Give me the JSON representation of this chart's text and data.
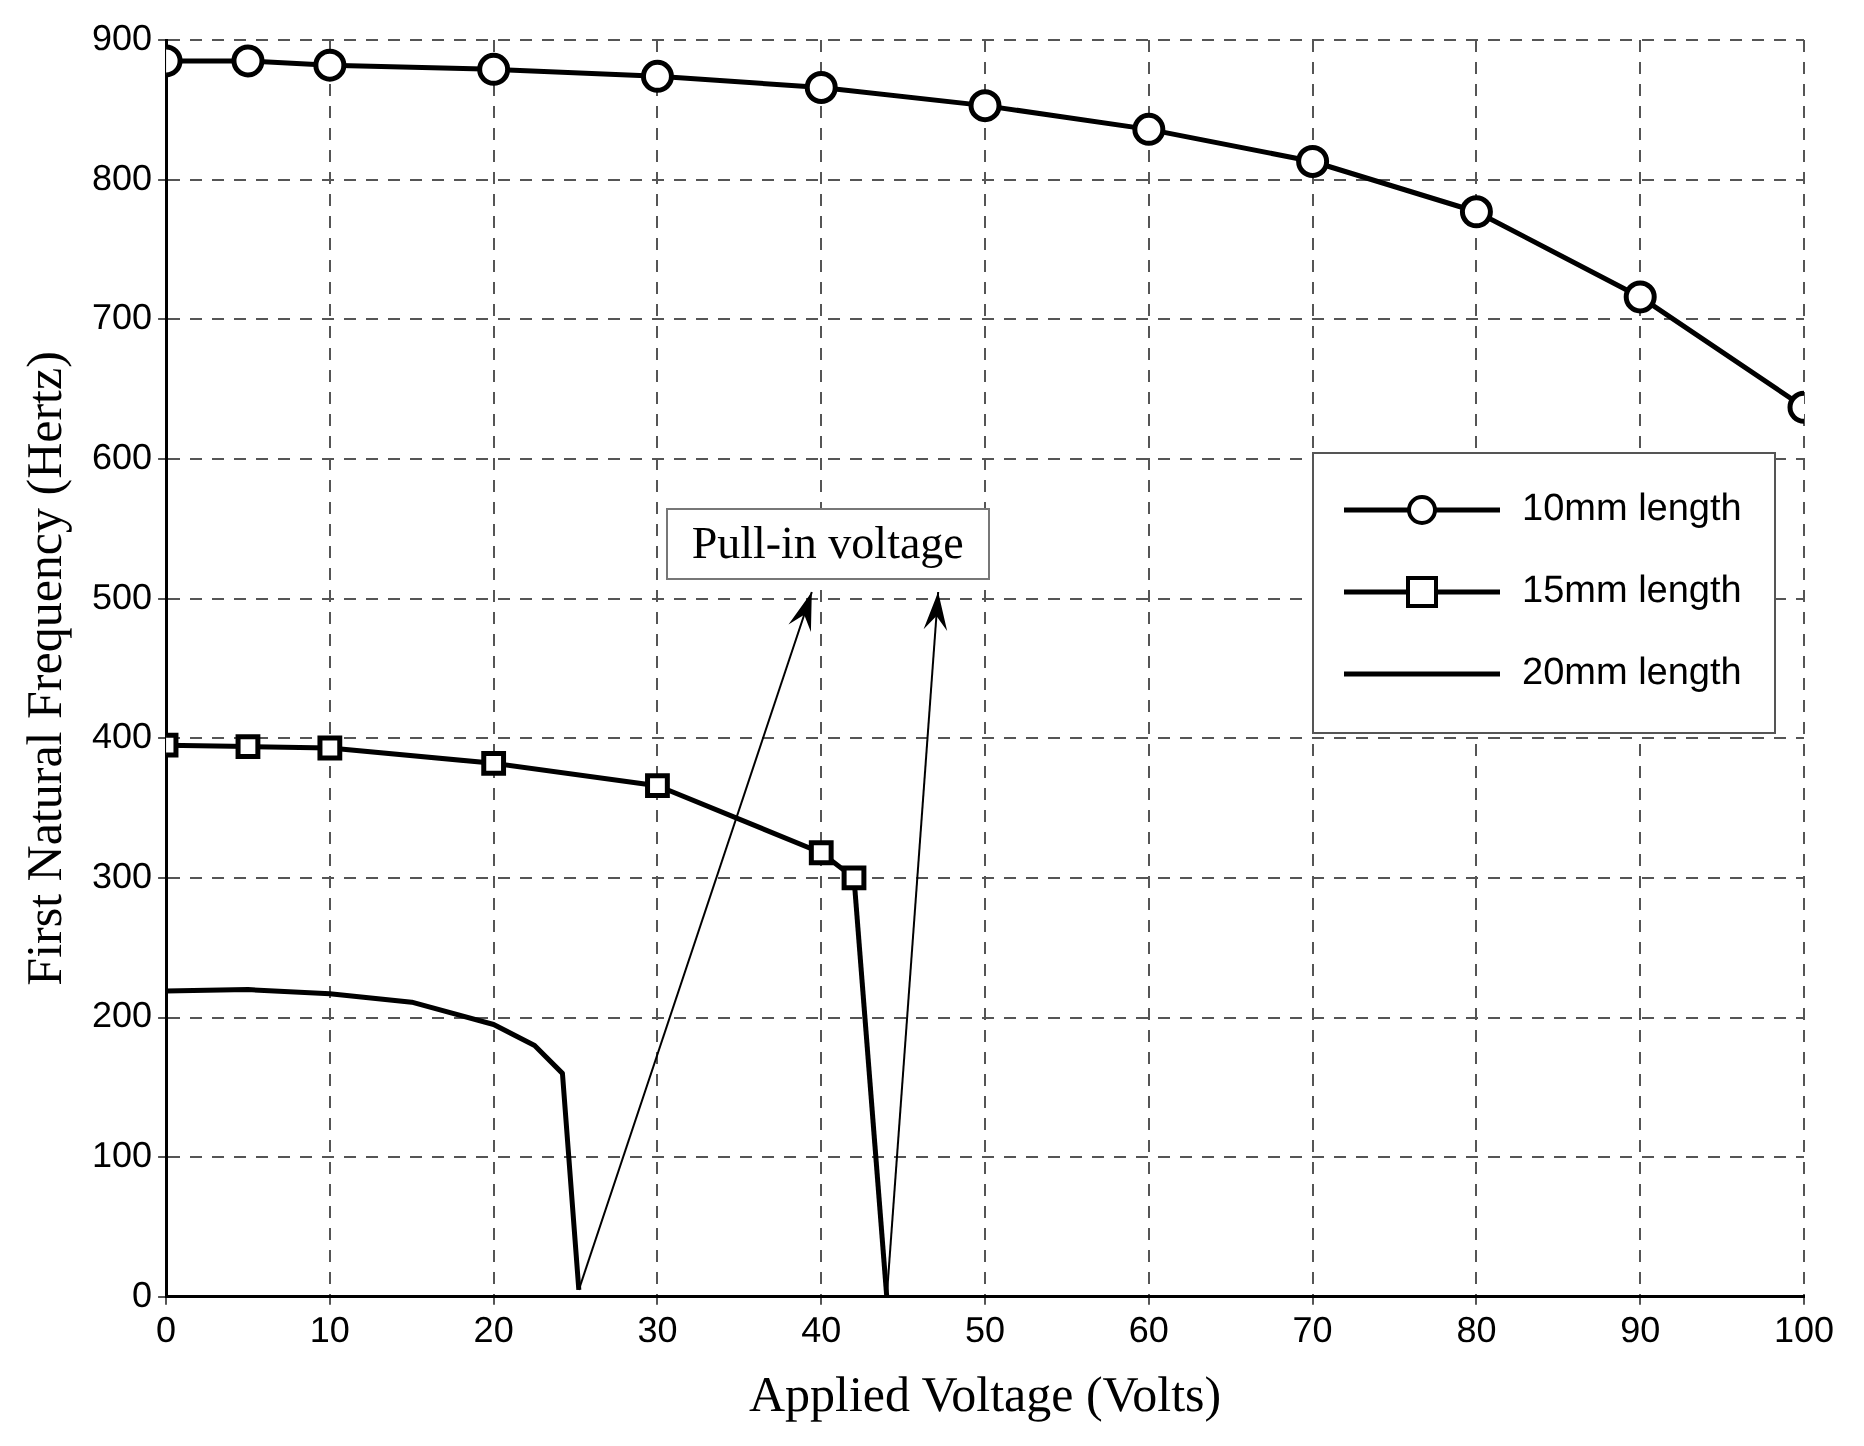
{
  "chart_data": {
    "type": "line",
    "xlabel": "Applied Voltage (Volts)",
    "ylabel": "First Natural Frequency (Hertz)",
    "xlim": [
      0,
      100
    ],
    "xticks": [
      0,
      10,
      20,
      30,
      40,
      50,
      60,
      70,
      80,
      90,
      100
    ],
    "ylim": [
      0,
      900
    ],
    "yticks": [
      0,
      100,
      200,
      300,
      400,
      500,
      600,
      700,
      800,
      900
    ],
    "grid": true,
    "legend": "right",
    "line_style": "solid",
    "annotations": [
      "Pull-in voltage"
    ],
    "series": [
      {
        "name": "10mm length",
        "color": "#000000",
        "marker": "circle",
        "x": [
          0,
          5,
          10,
          20,
          30,
          40,
          50,
          60,
          70,
          80,
          90,
          100
        ],
        "values": [
          885,
          885,
          882,
          879,
          874,
          866,
          853,
          836,
          813,
          777,
          716,
          637
        ]
      },
      {
        "name": "15mm length",
        "color": "#000000",
        "marker": "square",
        "x": [
          0,
          5,
          10,
          20,
          30,
          40,
          42
        ],
        "values": [
          395,
          394,
          393,
          382,
          366,
          318,
          300
        ]
      },
      {
        "name": "20mm length",
        "color": "#000000",
        "marker": "none",
        "x": [
          0,
          5,
          10,
          15,
          20,
          22.5,
          24.2,
          25.2
        ],
        "values": [
          219,
          220,
          217,
          211,
          195,
          180,
          160,
          5
        ]
      },
      {
        "color": "#000000",
        "marker": "none",
        "x": [
          42,
          44
        ],
        "values": [
          300,
          0
        ]
      }
    ]
  }
}
